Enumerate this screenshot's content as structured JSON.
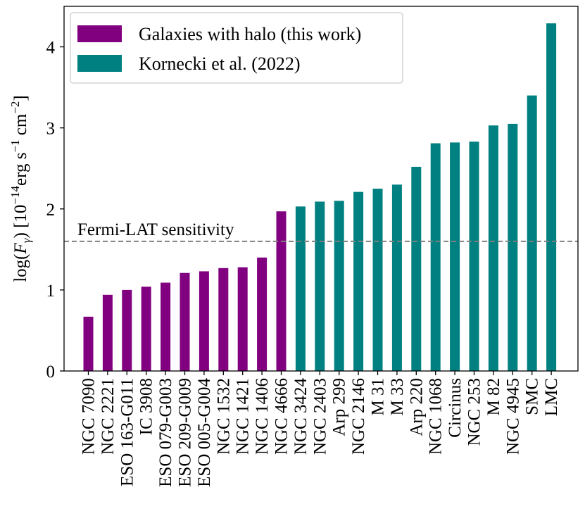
{
  "chart_data": {
    "type": "bar",
    "categories": [
      "NGC 7090",
      "NGC 2221",
      "ESO 163-G011",
      "IC 3908",
      "ESO 079-G003",
      "ESO 209-G009",
      "ESO 005-G004",
      "NGC 1532",
      "NGC 1421",
      "NGC 1406",
      "NGC 4666",
      "NGC 3424",
      "NGC 2403",
      "Arp 299",
      "NGC 2146",
      "M 31",
      "M 33",
      "Arp 220",
      "NGC 1068",
      "Circinus",
      "NGC 253",
      "M 82",
      "NGC 4945",
      "SMC",
      "LMC"
    ],
    "series": [
      {
        "name": "Galaxies with halo (this work)",
        "color": "#800080",
        "values": [
          0.67,
          0.94,
          1.0,
          1.04,
          1.09,
          1.21,
          1.23,
          1.27,
          1.28,
          1.4,
          1.97,
          null,
          null,
          null,
          null,
          null,
          null,
          null,
          null,
          null,
          null,
          null,
          null,
          null,
          null
        ]
      },
      {
        "name": "Kornecki et al. (2022)",
        "color": "#008080",
        "values": [
          null,
          null,
          null,
          null,
          null,
          null,
          null,
          null,
          null,
          null,
          null,
          2.03,
          2.09,
          2.1,
          2.21,
          2.25,
          2.3,
          2.52,
          2.81,
          2.82,
          2.83,
          3.03,
          3.05,
          3.4,
          4.29
        ]
      }
    ],
    "ylabel": "log(F_γ) [10^−14 erg s^−1 cm^−2]",
    "ylabel_parts": {
      "main": "log(",
      "var": "F",
      "var_sub": "γ",
      "close": ") [10",
      "exp1": "−14",
      "unit1": "erg s",
      "exp2": "−1",
      "unit2": " cm",
      "exp3": "−2",
      "end": "]"
    },
    "ylim": [
      0,
      4.5
    ],
    "yticks": [
      0,
      1,
      2,
      3,
      4
    ],
    "reference_line": {
      "value": 1.6,
      "label": "Fermi-LAT sensitivity",
      "color": "#808080",
      "style": "dashed"
    },
    "legend_position": "top-left",
    "grid": false
  }
}
